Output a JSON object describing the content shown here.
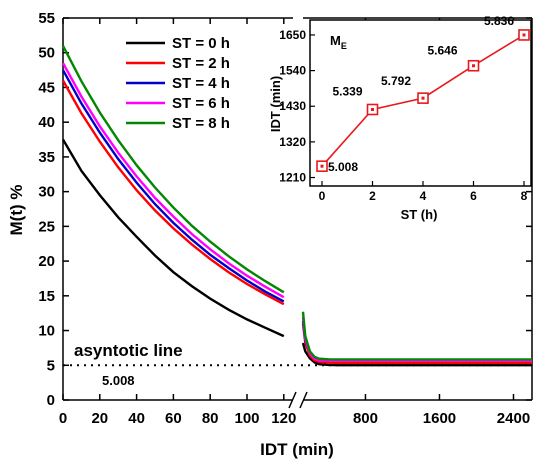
{
  "chart_data": [
    {
      "type": "line",
      "xlabel": "IDT (min)",
      "ylabel": "M(t) %",
      "ylim": [
        0,
        55
      ],
      "yticks": [
        "0",
        "5",
        "10",
        "15",
        "20",
        "25",
        "30",
        "35",
        "40",
        "45",
        "50",
        "55"
      ],
      "x_segments": [
        {
          "range": [
            0,
            125
          ],
          "ticks": [
            "0",
            "20",
            "40",
            "60",
            "80",
            "100",
            "120"
          ]
        },
        {
          "range": [
            125,
            2600
          ],
          "ticks": [
            "800",
            "1600",
            "2400"
          ]
        }
      ],
      "axis_break": "broken x axis between 120 and 800",
      "legend": {
        "position": "top-left"
      },
      "series": [
        {
          "name": "ST = 0 h",
          "color": "#000000",
          "seg1": {
            "x": [
              0,
              10,
              20,
              30,
              40,
              50,
              60,
              70,
              80,
              90,
              100,
              110,
              120
            ],
            "y": [
              37.5,
              33,
              29.5,
              26.3,
              23.5,
              20.8,
              18.4,
              16.4,
              14.6,
              13,
              11.6,
              10.4,
              9.2
            ]
          },
          "seg2": {
            "x": [
              125,
              150,
              200,
              250,
              300,
              400,
              500,
              600,
              800,
              1200,
              1600,
              2000,
              2400,
              2600
            ],
            "y": [
              8.2,
              7.0,
              6.0,
              5.4,
              5.15,
              5.05,
              5.01,
              5.01,
              5.01,
              5.01,
              5.01,
              5.01,
              5.01,
              5.01
            ]
          }
        },
        {
          "name": "ST = 2 h",
          "color": "#ff0000",
          "seg1": {
            "x": [
              0,
              10,
              20,
              30,
              40,
              50,
              60,
              70,
              80,
              90,
              100,
              110,
              120
            ],
            "y": [
              46,
              41.3,
              37.2,
              33.5,
              30.2,
              27.3,
              24.7,
              22.4,
              20.3,
              18.4,
              16.7,
              15.2,
              13.8
            ]
          },
          "seg2": {
            "x": [
              125,
              150,
              200,
              250,
              300,
              400,
              500,
              600,
              800,
              1200,
              1600,
              2000,
              2400,
              2600
            ],
            "y": [
              11.0,
              8.2,
              6.4,
              5.7,
              5.5,
              5.37,
              5.34,
              5.34,
              5.34,
              5.34,
              5.34,
              5.34,
              5.34,
              5.34
            ]
          }
        },
        {
          "name": "ST = 4 h",
          "color": "#0000cc",
          "seg1": {
            "x": [
              0,
              10,
              20,
              30,
              40,
              50,
              60,
              70,
              80,
              90,
              100,
              110,
              120
            ],
            "y": [
              47.5,
              42.7,
              38.5,
              34.7,
              31.3,
              28.2,
              25.5,
              23.1,
              20.9,
              19,
              17.2,
              15.6,
              14.2
            ]
          },
          "seg2": {
            "x": [
              125,
              150,
              200,
              250,
              300,
              400,
              500,
              600,
              800,
              1200,
              1600,
              2000,
              2400,
              2600
            ],
            "y": [
              11.4,
              8.6,
              6.8,
              6.1,
              5.9,
              5.81,
              5.79,
              5.79,
              5.79,
              5.79,
              5.79,
              5.79,
              5.79,
              5.79
            ]
          }
        },
        {
          "name": "ST = 6 h",
          "color": "#ff00ff",
          "seg1": {
            "x": [
              0,
              10,
              20,
              30,
              40,
              50,
              60,
              70,
              80,
              90,
              100,
              110,
              120
            ],
            "y": [
              48.5,
              43.7,
              39.4,
              35.6,
              32.2,
              29.1,
              26.4,
              23.9,
              21.7,
              19.7,
              17.9,
              16.3,
              14.8
            ]
          },
          "seg2": {
            "x": [
              125,
              150,
              200,
              250,
              300,
              400,
              500,
              600,
              800,
              1200,
              1600,
              2000,
              2400,
              2600
            ],
            "y": [
              11.9,
              8.8,
              6.7,
              5.95,
              5.72,
              5.66,
              5.65,
              5.65,
              5.65,
              5.65,
              5.65,
              5.65,
              5.65,
              5.65
            ]
          }
        },
        {
          "name": "ST = 8 h",
          "color": "#008800",
          "seg1": {
            "x": [
              0,
              10,
              20,
              30,
              40,
              50,
              60,
              70,
              80,
              90,
              100,
              110,
              120
            ],
            "y": [
              51,
              45.9,
              41.4,
              37.4,
              33.8,
              30.6,
              27.7,
              25.1,
              22.8,
              20.7,
              18.8,
              17.1,
              15.5
            ]
          },
          "seg2": {
            "x": [
              125,
              150,
              200,
              250,
              300,
              400,
              500,
              600,
              800,
              1200,
              1600,
              2000,
              2400,
              2600
            ],
            "y": [
              12.7,
              9.2,
              7.0,
              6.2,
              5.95,
              5.86,
              5.84,
              5.84,
              5.84,
              5.84,
              5.84,
              5.84,
              5.84,
              5.84
            ]
          }
        }
      ],
      "annotations": [
        {
          "text": "asyntotic line",
          "y": 5
        },
        {
          "text": "5.008",
          "y": 5
        }
      ]
    },
    {
      "type": "line",
      "title": "M",
      "title_subscript": "E",
      "xlabel": "ST (h)",
      "ylabel": "IDT (min)",
      "xlim": [
        0,
        8
      ],
      "ylim": [
        1190,
        1690
      ],
      "xticks": [
        "0",
        "2",
        "4",
        "6",
        "8"
      ],
      "yticks": [
        "1210",
        "1320",
        "1430",
        "1540",
        "1650"
      ],
      "color": "#e8191e",
      "marker": "square",
      "x": [
        0,
        2,
        4,
        6,
        8
      ],
      "y": [
        1245,
        1420,
        1455,
        1555,
        1650
      ],
      "data_labels": [
        "5.008",
        "5.339",
        "5.792",
        "5.646",
        "5.836"
      ]
    }
  ]
}
